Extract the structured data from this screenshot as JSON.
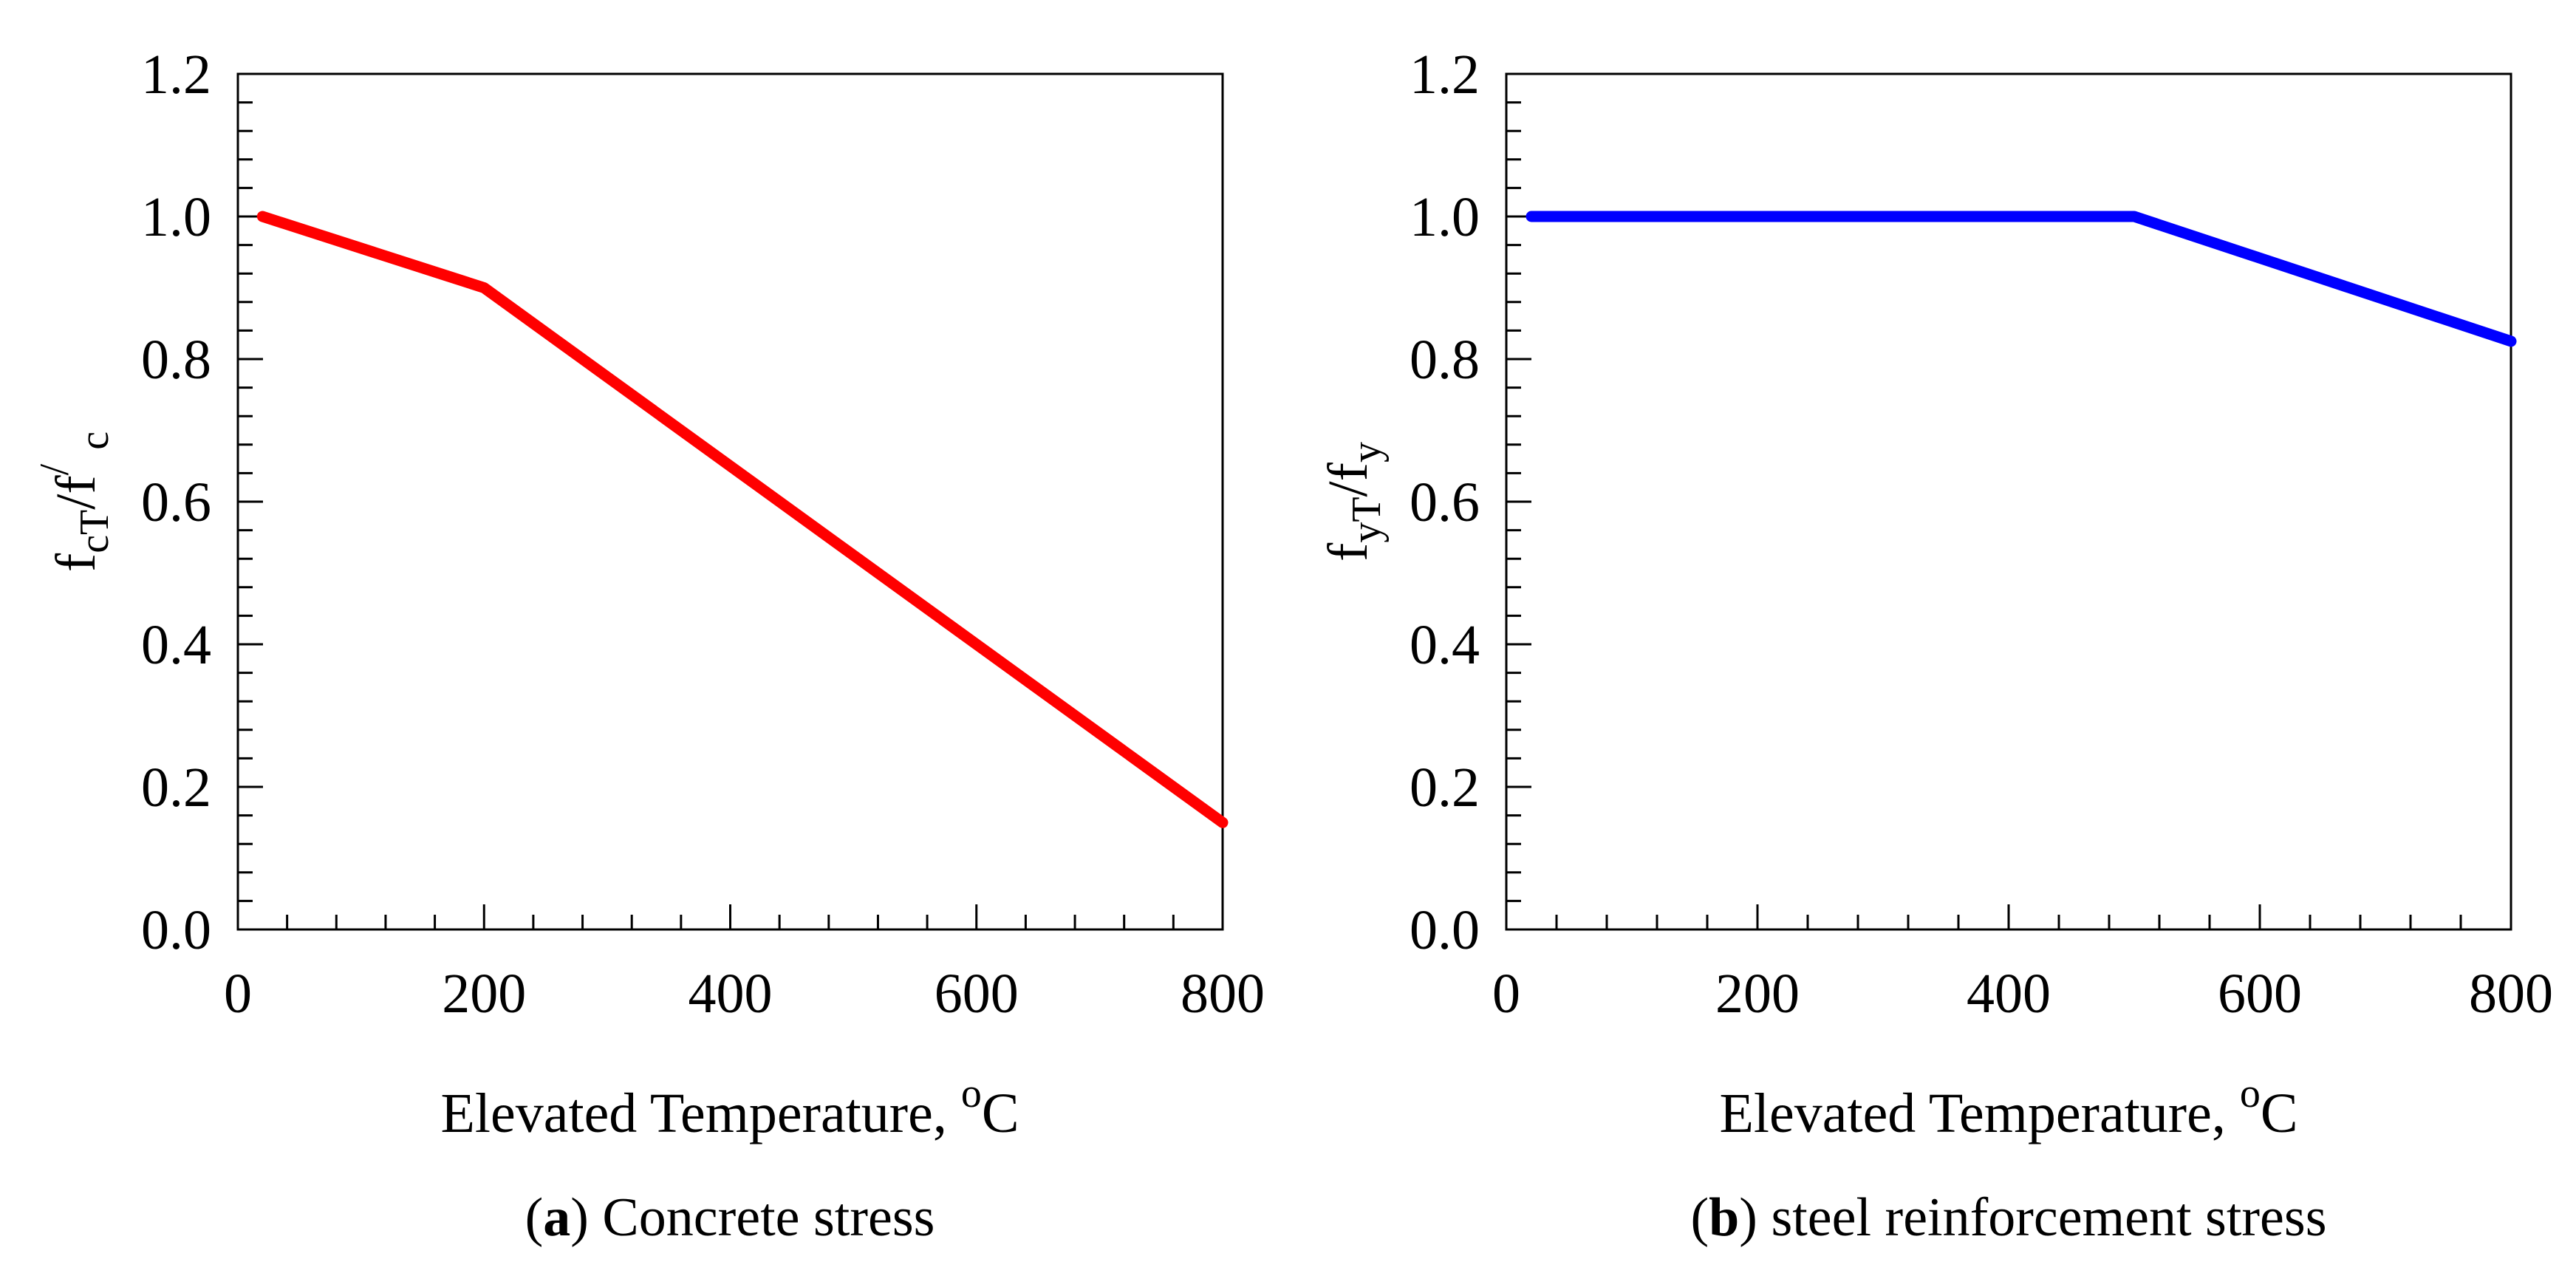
{
  "figure": {
    "panels": [
      {
        "caption": {
          "open": "(",
          "letter": "a",
          "close": ") ",
          "text": "Concrete stress"
        },
        "ylabel": {
          "f1": "f",
          "sub1": "cT",
          "mid": "/f",
          "sup": "/",
          "sub2": "c"
        },
        "xlabel": {
          "text": "Elevated Temperature, ",
          "sup": "o",
          "unit": "C"
        }
      },
      {
        "caption": {
          "open": "(",
          "letter": "b",
          "close": ") ",
          "text": "steel reinforcement stress"
        },
        "ylabel": {
          "f1": "f",
          "sub1": "yT",
          "mid": "/f",
          "sub2": "y"
        },
        "xlabel": {
          "text": "Elevated Temperature, ",
          "sup": "o",
          "unit": "C"
        }
      }
    ]
  },
  "chart_data": [
    {
      "type": "line",
      "title": "Concrete stress",
      "xlabel": "Elevated Temperature, oC",
      "ylabel": "fcT/f/c",
      "xlim": [
        0,
        800
      ],
      "ylim": [
        0,
        1.2
      ],
      "xticks": [
        "0",
        "200",
        "400",
        "600",
        "800"
      ],
      "xtick_values": [
        0,
        200,
        400,
        600,
        800
      ],
      "yticks": [
        "0.0",
        "0.2",
        "0.4",
        "0.6",
        "0.8",
        "1.0",
        "1.2"
      ],
      "ytick_values": [
        0,
        0.2,
        0.4,
        0.6,
        0.8,
        1.0,
        1.2
      ],
      "x_minor_step": 40,
      "y_minor_step": 0.04,
      "grid": false,
      "series": [
        {
          "name": "concrete",
          "color": "#ff0000",
          "x": [
            20,
            200,
            800
          ],
          "y": [
            1.0,
            0.9,
            0.15
          ]
        }
      ]
    },
    {
      "type": "line",
      "title": "steel reinforcement stress",
      "xlabel": "Elevated Temperature, oC",
      "ylabel": "fyT/fy",
      "xlim": [
        0,
        800
      ],
      "ylim": [
        0,
        1.2
      ],
      "xticks": [
        "0",
        "200",
        "400",
        "600",
        "800"
      ],
      "xtick_values": [
        0,
        200,
        400,
        600,
        800
      ],
      "yticks": [
        "0.0",
        "0.2",
        "0.4",
        "0.6",
        "0.8",
        "1.0",
        "1.2"
      ],
      "ytick_values": [
        0,
        0.2,
        0.4,
        0.6,
        0.8,
        1.0,
        1.2
      ],
      "x_minor_step": 40,
      "y_minor_step": 0.04,
      "grid": false,
      "series": [
        {
          "name": "steel",
          "color": "#0000ff",
          "x": [
            20,
            500,
            800
          ],
          "y": [
            1.0,
            1.0,
            0.825
          ]
        }
      ]
    }
  ]
}
